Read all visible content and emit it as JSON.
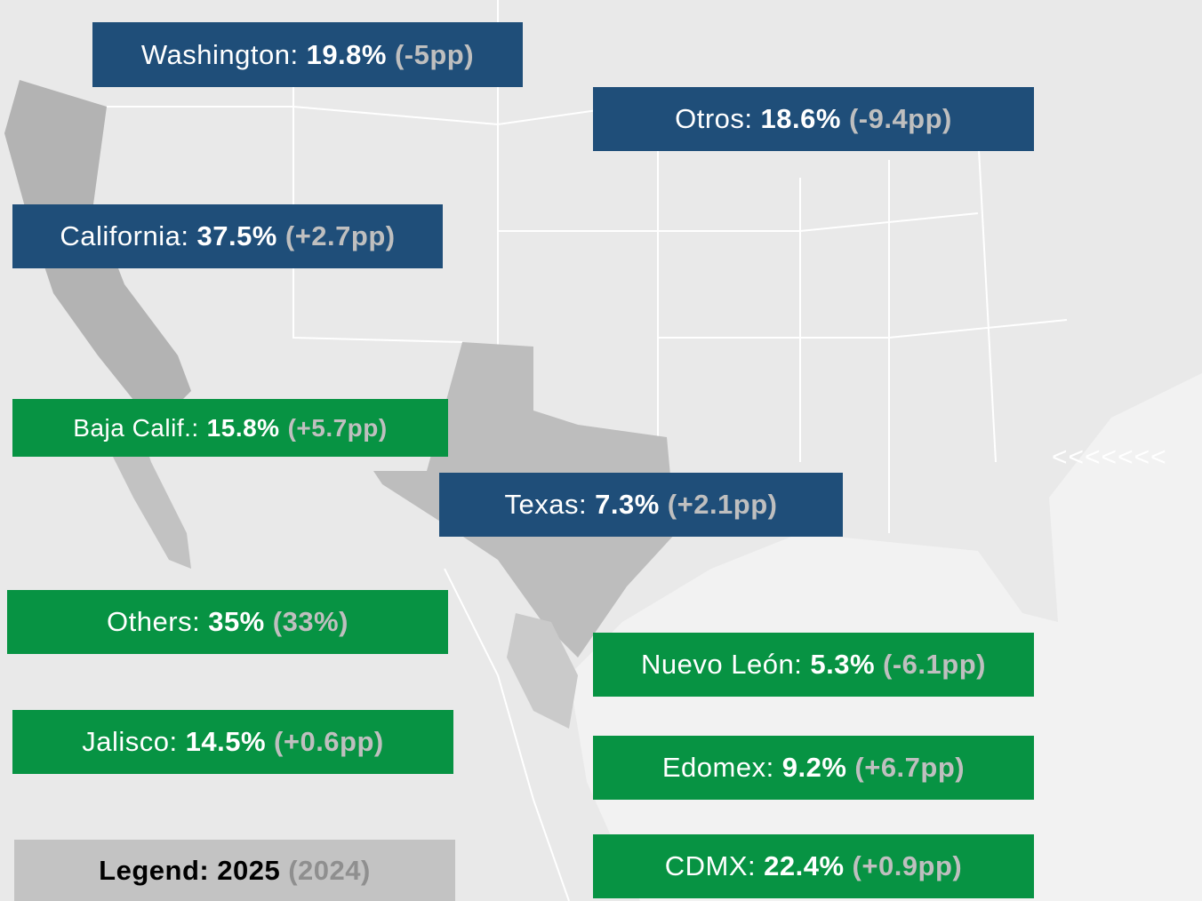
{
  "labels": [
    {
      "name": "Washington:",
      "value": "19.8%",
      "change": "(-5pp)"
    },
    {
      "name": "Otros:",
      "value": "18.6%",
      "change": "(-9.4pp)"
    },
    {
      "name": "California:",
      "value": "37.5%",
      "change": "(+2.7pp)"
    },
    {
      "name": "Baja Calif.:",
      "value": "15.8%",
      "change": "(+5.7pp)"
    },
    {
      "name": "Texas:",
      "value": "7.3%",
      "change": "(+2.1pp)"
    },
    {
      "name": "Others:",
      "value": "35%",
      "change": "(33%)"
    },
    {
      "name": "Nuevo León:",
      "value": "5.3%",
      "change": "(-6.1pp)"
    },
    {
      "name": "Jalisco:",
      "value": "14.5%",
      "change": "(+0.6pp)"
    },
    {
      "name": "Edomex:",
      "value": "9.2%",
      "change": "(+6.7pp)"
    },
    {
      "name": "CDMX:",
      "value": "22.4%",
      "change": "(+0.9pp)"
    }
  ],
  "legend": {
    "label": "Legend:",
    "year": "2025",
    "previous": "(2024)"
  },
  "arrows": "<<<<<<<"
}
